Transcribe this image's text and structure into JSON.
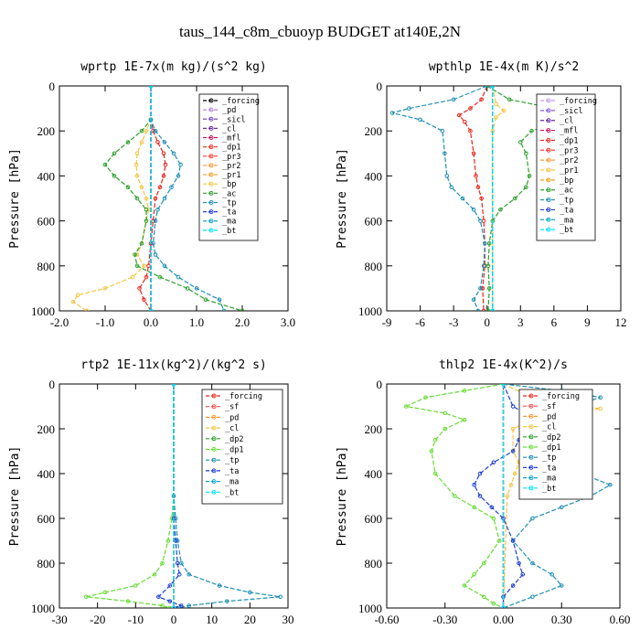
{
  "figure": {
    "title": "taus_144_c8m_cbuoyp  BUDGET at140E,2N"
  },
  "chart_data": [
    {
      "type": "line",
      "title": "wprtp  1E-7x(m kg)/(s^2 kg)",
      "ylabel": "Pressure [hPa]",
      "xlim": [
        -2.0,
        3.0
      ],
      "ylim": [
        1000,
        0
      ],
      "xticks": [
        "-2.0",
        "-1.0",
        "0.0",
        "1.0",
        "2.0",
        "3.0"
      ],
      "xtick_values": [
        -2,
        -1,
        0,
        1,
        2,
        3
      ],
      "yticks": [
        "0",
        "200",
        "400",
        "600",
        "800",
        "1000"
      ],
      "ytick_values": [
        0,
        200,
        400,
        600,
        800,
        1000
      ],
      "series": [
        {
          "name": "_forcing",
          "color": "#000000",
          "y": [
            0,
            1000
          ],
          "x": [
            0,
            0
          ]
        },
        {
          "name": "_pd",
          "color": "#b084e0",
          "y": [
            0,
            1000
          ],
          "x": [
            0,
            0
          ]
        },
        {
          "name": "_sicl",
          "color": "#7a4fbf",
          "y": [
            0,
            1000
          ],
          "x": [
            0,
            0
          ]
        },
        {
          "name": "_cl",
          "color": "#6a2ca8",
          "y": [
            0,
            1000
          ],
          "x": [
            0,
            0
          ]
        },
        {
          "name": "_mfl",
          "color": "#c2185b",
          "y": [
            0,
            1000
          ],
          "x": [
            0,
            0
          ]
        },
        {
          "name": "_dp1",
          "color": "#e8281e",
          "y": [
            0,
            150,
            200,
            250,
            300,
            350,
            400,
            450,
            500,
            600,
            700,
            800,
            850,
            900,
            950,
            1000
          ],
          "x": [
            0,
            0,
            0.05,
            0.15,
            0.28,
            0.32,
            0.28,
            0.2,
            0.1,
            0.05,
            0,
            -0.05,
            -0.1,
            -0.25,
            -0.15,
            0
          ]
        },
        {
          "name": "_pr3",
          "color": "#ff3b30",
          "y": [
            0,
            1000
          ],
          "x": [
            0,
            0
          ]
        },
        {
          "name": "_pr2",
          "color": "#ff9933",
          "y": [
            0,
            1000
          ],
          "x": [
            0,
            0
          ]
        },
        {
          "name": "_pr1",
          "color": "#f0a020",
          "y": [
            0,
            1000
          ],
          "x": [
            0,
            0
          ]
        },
        {
          "name": "_bp",
          "color": "#f5c542",
          "y": [
            0,
            150,
            200,
            250,
            300,
            350,
            400,
            450,
            500,
            550,
            600,
            700,
            750,
            800,
            850,
            900,
            930,
            960,
            1000
          ],
          "x": [
            0,
            0,
            -0.1,
            -0.2,
            -0.3,
            -0.32,
            -0.3,
            -0.2,
            -0.1,
            -0.05,
            -0.1,
            -0.2,
            -0.3,
            -0.15,
            -0.4,
            -1.0,
            -1.6,
            -1.7,
            -1.4
          ]
        },
        {
          "name": "_ac",
          "color": "#2ca02c",
          "y": [
            0,
            150,
            200,
            250,
            300,
            350,
            400,
            450,
            500,
            550,
            600,
            700,
            750,
            800,
            850,
            900,
            950,
            1000
          ],
          "x": [
            0,
            0,
            -0.2,
            -0.5,
            -0.8,
            -1.0,
            -0.8,
            -0.5,
            -0.3,
            -0.1,
            -0.1,
            -0.2,
            -0.35,
            -0.3,
            0.2,
            0.8,
            1.2,
            2.0
          ]
        },
        {
          "name": "_tp",
          "color": "#1f8fb4",
          "y": [
            0,
            150,
            200,
            250,
            300,
            350,
            400,
            450,
            500,
            550,
            600,
            700,
            750,
            800,
            850,
            900,
            950,
            1000
          ],
          "x": [
            0,
            0,
            0.1,
            0.3,
            0.5,
            0.65,
            0.6,
            0.45,
            0.3,
            0.15,
            0.1,
            0.05,
            0.1,
            0.3,
            0.6,
            1.0,
            1.5,
            1.6
          ]
        },
        {
          "name": "_ta",
          "color": "#1f3fd1",
          "y": [
            0,
            1000
          ],
          "x": [
            0,
            0
          ]
        },
        {
          "name": "_ma",
          "color": "#0ea5c8",
          "y": [
            0,
            1000
          ],
          "x": [
            0,
            0
          ]
        },
        {
          "name": "_bt",
          "color": "#00e5ff",
          "y": [
            0,
            1000
          ],
          "x": [
            0,
            0
          ]
        }
      ]
    },
    {
      "type": "line",
      "title": "wpthlp  1E-4x(m K)/s^2",
      "ylabel": "Pressure [hPa]",
      "xlim": [
        -9,
        12
      ],
      "ylim": [
        1000,
        0
      ],
      "xticks": [
        "-9",
        "-6",
        "-3",
        "0",
        "3",
        "6",
        "9",
        "12"
      ],
      "xtick_values": [
        -9,
        -6,
        -3,
        0,
        3,
        6,
        9,
        12
      ],
      "yticks": [
        "0",
        "200",
        "400",
        "600",
        "800",
        "1000"
      ],
      "ytick_values": [
        0,
        200,
        400,
        600,
        800,
        1000
      ],
      "series": [
        {
          "name": "_forcing",
          "color": "#c79be8",
          "y": [
            0,
            1000
          ],
          "x": [
            0.5,
            0.5
          ]
        },
        {
          "name": "_sicl",
          "color": "#8a5bd0",
          "y": [
            0,
            1000
          ],
          "x": [
            0.5,
            0.5
          ]
        },
        {
          "name": "_cl",
          "color": "#6a2ca8",
          "y": [
            0,
            1000
          ],
          "x": [
            0.5,
            0.5
          ]
        },
        {
          "name": "_mfl",
          "color": "#c2185b",
          "y": [
            0,
            1000
          ],
          "x": [
            0.5,
            0.5
          ]
        },
        {
          "name": "_dp1",
          "color": "#e8281e",
          "y": [
            0,
            60,
            100,
            130,
            160,
            200,
            300,
            400,
            450,
            500,
            600,
            700,
            800,
            900,
            1000
          ],
          "x": [
            0,
            -0.5,
            -1.5,
            -2.5,
            -2.0,
            -1.5,
            -1.2,
            -1.0,
            -0.8,
            -0.5,
            -0.3,
            -0.2,
            -0.2,
            -0.4,
            -0.3
          ]
        },
        {
          "name": "_pr3",
          "color": "#ff3b30",
          "y": [
            0,
            1000
          ],
          "x": [
            0.5,
            0.5
          ]
        },
        {
          "name": "_pr2",
          "color": "#ff9933",
          "y": [
            0,
            1000
          ],
          "x": [
            0.5,
            0.5
          ]
        },
        {
          "name": "_pr1",
          "color": "#f5c542",
          "y": [
            0,
            80,
            110,
            140,
            200,
            1000
          ],
          "x": [
            0.5,
            0.8,
            1.5,
            0.8,
            0.5,
            0.5
          ]
        },
        {
          "name": "_bp",
          "color": "#f0a020",
          "y": [
            0,
            1000
          ],
          "x": [
            0.5,
            0.5
          ]
        },
        {
          "name": "_ac",
          "color": "#2ca02c",
          "y": [
            0,
            60,
            100,
            120,
            150,
            200,
            250,
            300,
            400,
            450,
            500,
            550,
            600,
            700,
            800,
            900,
            1000
          ],
          "x": [
            0,
            2,
            6,
            9.5,
            7,
            4,
            3,
            3.5,
            3.8,
            3.5,
            2.5,
            1.2,
            0.5,
            0.2,
            0.1,
            0.2,
            0.1
          ]
        },
        {
          "name": "_tp",
          "color": "#1f8fb4",
          "y": [
            0,
            60,
            100,
            120,
            150,
            200,
            300,
            400,
            450,
            500,
            550,
            600,
            700,
            800,
            900,
            950,
            1000
          ],
          "x": [
            0,
            -3,
            -7,
            -8.5,
            -6,
            -4,
            -3.8,
            -3.6,
            -3.2,
            -2.2,
            -1.2,
            -0.6,
            -0.2,
            -0.3,
            -0.6,
            -1.2,
            -0.8
          ]
        },
        {
          "name": "_ta",
          "color": "#1f3fd1",
          "y": [
            0,
            1000
          ],
          "x": [
            0.5,
            0.5
          ]
        },
        {
          "name": "_ma",
          "color": "#0ea5c8",
          "y": [
            0,
            1000
          ],
          "x": [
            0.5,
            0.5
          ]
        },
        {
          "name": "_bt",
          "color": "#00e5ff",
          "y": [
            0,
            1000
          ],
          "x": [
            0.5,
            0.5
          ]
        }
      ]
    },
    {
      "type": "line",
      "title": "rtp2  1E-11x(kg^2)/(kg^2 s)",
      "ylabel": "Pressure [hPa]",
      "xlim": [
        -30,
        30
      ],
      "ylim": [
        1000,
        0
      ],
      "xticks": [
        "-30",
        "-20",
        "-10",
        "0",
        "10",
        "20",
        "30"
      ],
      "xtick_values": [
        -30,
        -20,
        -10,
        0,
        10,
        20,
        30
      ],
      "yticks": [
        "0",
        "200",
        "400",
        "600",
        "800",
        "1000"
      ],
      "ytick_values": [
        0,
        200,
        400,
        600,
        800,
        1000
      ],
      "series": [
        {
          "name": "_forcing",
          "color": "#e8281e",
          "y": [
            0,
            1000
          ],
          "x": [
            0,
            0
          ]
        },
        {
          "name": "_sf",
          "color": "#ff4d4d",
          "y": [
            0,
            1000
          ],
          "x": [
            0,
            0
          ]
        },
        {
          "name": "_pd",
          "color": "#ff9933",
          "y": [
            0,
            1000
          ],
          "x": [
            0,
            0
          ]
        },
        {
          "name": "_cl",
          "color": "#f5c542",
          "y": [
            0,
            1000
          ],
          "x": [
            0,
            0
          ]
        },
        {
          "name": "_dp2",
          "color": "#2ca02c",
          "y": [
            0,
            1000
          ],
          "x": [
            0,
            0
          ]
        },
        {
          "name": "_dp1",
          "color": "#66dd33",
          "y": [
            0,
            500,
            600,
            700,
            800,
            850,
            900,
            930,
            950,
            970,
            990,
            1000
          ],
          "x": [
            0,
            0,
            -0.5,
            -1.5,
            -3,
            -5,
            -10,
            -18,
            -23,
            -12,
            -3,
            -1
          ]
        },
        {
          "name": "_tp",
          "color": "#1f8fb4",
          "y": [
            0,
            500,
            600,
            700,
            800,
            850,
            900,
            930,
            950,
            970,
            990,
            1000
          ],
          "x": [
            0,
            0,
            0.5,
            1.0,
            2,
            4,
            12,
            20,
            28,
            14,
            4,
            1
          ]
        },
        {
          "name": "_ta",
          "color": "#1f3fd1",
          "y": [
            0,
            600,
            700,
            800,
            850,
            900,
            950,
            970,
            990,
            1000
          ],
          "x": [
            0,
            0,
            0.5,
            1,
            1.5,
            -1,
            -4,
            -1,
            2,
            0
          ]
        },
        {
          "name": "_ma",
          "color": "#0ea5c8",
          "y": [
            0,
            1000
          ],
          "x": [
            0,
            0
          ]
        },
        {
          "name": "_bt",
          "color": "#00e5ff",
          "y": [
            0,
            1000
          ],
          "x": [
            0,
            0
          ]
        }
      ]
    },
    {
      "type": "line",
      "title": "thlp2  1E-4x(K^2)/s",
      "ylabel": "Pressure [hPa]",
      "xlim": [
        -0.6,
        0.6
      ],
      "ylim": [
        1000,
        0
      ],
      "xticks": [
        "-0.60",
        "-0.30",
        "0.00",
        "0.30",
        "0.60"
      ],
      "xtick_values": [
        -0.6,
        -0.3,
        0,
        0.3,
        0.6
      ],
      "yticks": [
        "0",
        "200",
        "400",
        "600",
        "800",
        "1000"
      ],
      "ytick_values": [
        0,
        200,
        400,
        600,
        800,
        1000
      ],
      "series": [
        {
          "name": "_forcing",
          "color": "#e8281e",
          "y": [
            0,
            1000
          ],
          "x": [
            0,
            0
          ]
        },
        {
          "name": "_sf",
          "color": "#ff4d4d",
          "y": [
            0,
            1000
          ],
          "x": [
            0,
            0
          ]
        },
        {
          "name": "_pd",
          "color": "#ff9933",
          "y": [
            0,
            1000
          ],
          "x": [
            0,
            0
          ]
        },
        {
          "name": "_cl",
          "color": "#f5c542",
          "y": [
            0,
            80,
            110,
            140,
            200,
            300,
            350,
            400,
            450,
            500,
            1000
          ],
          "x": [
            0,
            0.2,
            0.5,
            0.2,
            0.05,
            0.05,
            0.08,
            0.06,
            0.04,
            0.02,
            0
          ]
        },
        {
          "name": "_dp2",
          "color": "#2ca02c",
          "y": [
            0,
            1000
          ],
          "x": [
            0,
            0
          ]
        },
        {
          "name": "_dp1",
          "color": "#66dd33",
          "y": [
            0,
            30,
            60,
            100,
            130,
            160,
            200,
            250,
            300,
            400,
            500,
            550,
            600,
            700,
            800,
            850,
            900,
            950,
            980,
            1000
          ],
          "x": [
            0,
            -0.2,
            -0.4,
            -0.5,
            -0.3,
            -0.2,
            -0.3,
            -0.35,
            -0.37,
            -0.35,
            -0.25,
            -0.15,
            -0.05,
            -0.02,
            -0.1,
            -0.15,
            -0.2,
            -0.1,
            -0.05,
            0
          ]
        },
        {
          "name": "_tp",
          "color": "#1f8fb4",
          "y": [
            0,
            30,
            60,
            100,
            130,
            200,
            300,
            400,
            450,
            500,
            550,
            600,
            700,
            800,
            850,
            900,
            950,
            1000
          ],
          "x": [
            0,
            0.3,
            0.5,
            0.35,
            0.15,
            0.1,
            0.2,
            0.4,
            0.55,
            0.45,
            0.3,
            0.15,
            0.05,
            0.15,
            0.25,
            0.3,
            0.15,
            0
          ]
        },
        {
          "name": "_ta",
          "color": "#1f3fd1",
          "y": [
            0,
            100,
            150,
            200,
            250,
            300,
            350,
            400,
            450,
            500,
            550,
            600,
            700,
            800,
            850,
            900,
            950,
            1000
          ],
          "x": [
            0,
            0.05,
            0.15,
            0.1,
            0.08,
            0.05,
            -0.05,
            -0.12,
            -0.15,
            -0.12,
            -0.06,
            0,
            0.05,
            0.08,
            0.1,
            0.05,
            0,
            0
          ]
        },
        {
          "name": "_ma",
          "color": "#0ea5c8",
          "y": [
            0,
            1000
          ],
          "x": [
            0,
            0
          ]
        },
        {
          "name": "_bt",
          "color": "#00e5ff",
          "y": [
            0,
            1000
          ],
          "x": [
            0,
            0
          ]
        }
      ]
    }
  ]
}
